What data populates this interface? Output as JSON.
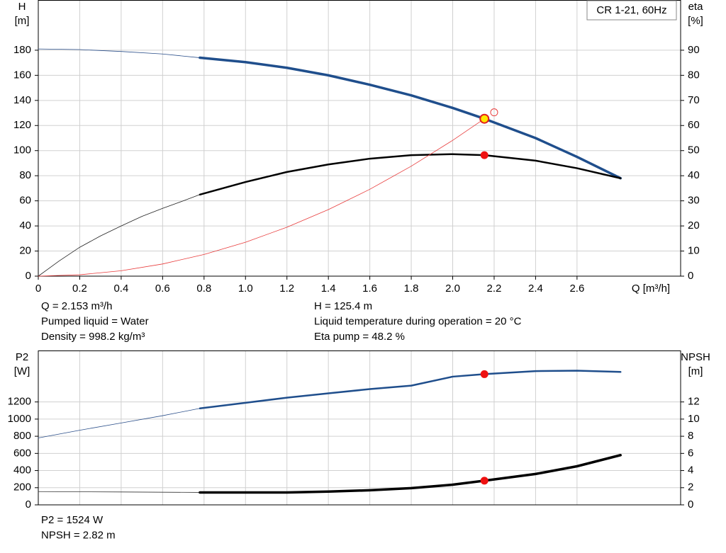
{
  "chart_data": [
    {
      "type": "line",
      "legend_box": "CR 1-21, 60Hz",
      "ylabel": [
        "H",
        "[m]"
      ],
      "y2label": [
        "eta",
        "[%]"
      ],
      "xlabel": "Q [m³/h]",
      "xlim": [
        0,
        3.1
      ],
      "ylim": [
        0,
        220
      ],
      "y2lim": [
        0,
        110
      ],
      "xticks": [
        0,
        0.2,
        0.4,
        0.6,
        0.8,
        {
          "value": 1,
          "label": "1.0"
        },
        1.2,
        1.4,
        1.6,
        1.8,
        {
          "value": 2,
          "label": "2.0"
        },
        2.2,
        2.4,
        2.6
      ],
      "yticks": [
        0,
        20,
        40,
        60,
        80,
        100,
        120,
        140,
        160,
        180
      ],
      "y2ticks": [
        0,
        10,
        20,
        30,
        40,
        50,
        60,
        70,
        80,
        90
      ],
      "x_tick_labels": true,
      "grid": true,
      "series": [
        {
          "color": "#2b4f8a",
          "width": 0.8,
          "x": [
            0,
            0.2,
            0.4,
            0.6,
            0.78
          ],
          "values": [
            181,
            180.5,
            179,
            177,
            174
          ]
        },
        {
          "color": "#1f4e8c",
          "width": 3.5,
          "x": [
            0.78,
            1.0,
            1.2,
            1.4,
            1.6,
            1.8,
            2.0,
            2.153,
            2.4,
            2.6,
            2.81
          ],
          "values": [
            174,
            170.5,
            166,
            160,
            152.5,
            144,
            134,
            125.4,
            110,
            95,
            78
          ]
        },
        {
          "color": "#222222",
          "width": 0.8,
          "axis": "y2",
          "x": [
            0,
            0.1,
            0.2,
            0.3,
            0.4,
            0.5,
            0.6,
            0.7,
            0.78
          ],
          "values": [
            0,
            6,
            11.5,
            16,
            20,
            23.8,
            27,
            30,
            32.5
          ]
        },
        {
          "color": "#000000",
          "width": 2.5,
          "axis": "y2",
          "x": [
            0.78,
            1.0,
            1.2,
            1.4,
            1.6,
            1.8,
            2.0,
            2.153,
            2.4,
            2.6,
            2.81
          ],
          "values": [
            32.5,
            37.5,
            41.5,
            44.5,
            46.8,
            48.2,
            48.6,
            48.2,
            46,
            43,
            39
          ]
        },
        {
          "color": "#e83a3a",
          "width": 0.8,
          "x": [
            0,
            0.2,
            0.4,
            0.6,
            0.8,
            1.0,
            1.2,
            1.4,
            1.6,
            1.8,
            2.0,
            2.153
          ],
          "values": [
            0,
            1.1,
            4.3,
            9.7,
            17.3,
            27,
            39,
            53,
            69.2,
            87.6,
            108.2,
            125.4
          ]
        }
      ],
      "markers": [
        {
          "x": 2.2,
          "value": 130.5,
          "color": "#e83a3a",
          "style": "hollow"
        },
        {
          "x": 2.153,
          "value": 125.4,
          "color": "#ffe600",
          "style": "ringed"
        },
        {
          "x": 2.153,
          "value": 48.2,
          "axis": "y2",
          "color": "#ee1111",
          "style": "filled"
        }
      ],
      "info": [
        [
          "Q = 2.153 m³/h",
          "Pumped liquid = Water",
          "Density = 998.2 kg/m³"
        ],
        [
          "H = 125.4 m",
          "Liquid temperature during operation = 20 °C",
          "Eta pump = 48.2 %"
        ]
      ]
    },
    {
      "type": "line",
      "ylabel": [
        "P2",
        "[W]"
      ],
      "y2label": [
        "NPSH",
        "[m]"
      ],
      "xlim": [
        0,
        3.1
      ],
      "ylim": [
        0,
        1800
      ],
      "y2lim": [
        0,
        18
      ],
      "xticks": [
        0,
        0.2,
        0.4,
        0.6,
        0.8,
        1,
        1.2,
        1.4,
        1.6,
        1.8,
        2,
        2.2,
        2.4,
        2.6
      ],
      "yticks": [
        0,
        200,
        400,
        600,
        800,
        1000,
        1200
      ],
      "y2ticks": [
        0,
        2,
        4,
        6,
        8,
        10,
        12
      ],
      "x_tick_labels": false,
      "grid": true,
      "series": [
        {
          "color": "#2b4f8a",
          "width": 0.8,
          "x": [
            0,
            0.2,
            0.4,
            0.6,
            0.78
          ],
          "values": [
            780,
            870,
            955,
            1040,
            1125
          ]
        },
        {
          "color": "#1f4e8c",
          "width": 2.5,
          "x": [
            0.78,
            1.0,
            1.2,
            1.4,
            1.6,
            1.8,
            2.0,
            2.153,
            2.4,
            2.6,
            2.81
          ],
          "values": [
            1125,
            1190,
            1250,
            1300,
            1350,
            1390,
            1495,
            1524,
            1560,
            1565,
            1550
          ]
        },
        {
          "color": "#333333",
          "width": 0.8,
          "axis": "y2",
          "x": [
            0,
            0.4,
            0.78
          ],
          "values": [
            1.55,
            1.5,
            1.45
          ]
        },
        {
          "color": "#000000",
          "width": 3.5,
          "axis": "y2",
          "x": [
            0.78,
            1.0,
            1.2,
            1.4,
            1.6,
            1.8,
            2.0,
            2.153,
            2.4,
            2.6,
            2.81
          ],
          "values": [
            1.45,
            1.45,
            1.45,
            1.55,
            1.7,
            1.95,
            2.35,
            2.82,
            3.6,
            4.5,
            5.8
          ]
        }
      ],
      "markers": [
        {
          "x": 2.153,
          "value": 1524,
          "color": "#ee1111",
          "style": "filled"
        },
        {
          "x": 2.153,
          "value": 2.82,
          "axis": "y2",
          "color": "#ee1111",
          "style": "filled"
        }
      ],
      "info": [
        [
          "P2 = 1524 W",
          "NPSH = 2.82 m"
        ]
      ]
    }
  ]
}
